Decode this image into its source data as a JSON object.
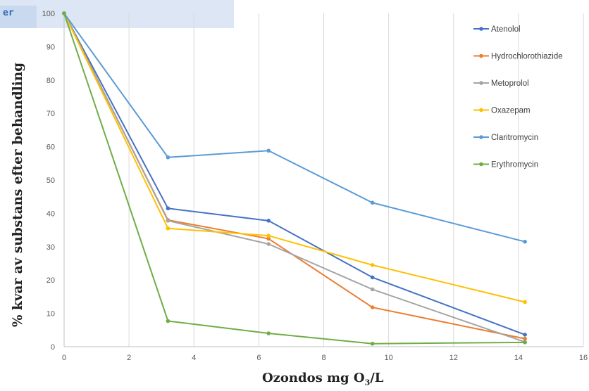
{
  "header_fragment": "er",
  "chart_data": {
    "type": "line",
    "xlabel_main": "Ozondos mg O",
    "xlabel_sub": "3",
    "xlabel_end": "/L",
    "ylabel": "% kvar av substans efter behandling",
    "xlim": [
      0,
      16
    ],
    "ylim": [
      0,
      100
    ],
    "xticks": [
      "0",
      "2",
      "4",
      "6",
      "8",
      "10",
      "12",
      "14",
      "16"
    ],
    "yticks": [
      "0",
      "10",
      "20",
      "30",
      "40",
      "50",
      "60",
      "70",
      "80",
      "90",
      "100"
    ],
    "grid": "vertical",
    "legend_position": "right",
    "x": [
      0,
      3.2,
      6.3,
      9.5,
      14.2
    ],
    "series": [
      {
        "name": "Atenolol",
        "color": "#4472c4",
        "values": [
          100,
          41.5,
          37.8,
          20.8,
          3.6
        ]
      },
      {
        "name": "Hydrochlorothiazide",
        "color": "#ed7d31",
        "values": [
          100,
          38.0,
          32.4,
          11.8,
          2.4
        ]
      },
      {
        "name": "Metoprolol",
        "color": "#a5a5a5",
        "values": [
          100,
          37.8,
          30.8,
          17.2,
          1.4
        ]
      },
      {
        "name": "Oxazepam",
        "color": "#ffc000",
        "values": [
          100,
          35.5,
          33.3,
          24.5,
          13.4
        ]
      },
      {
        "name": "Claritromycin",
        "color": "#5b9bd5",
        "values": [
          100,
          56.8,
          58.8,
          43.2,
          31.5
        ]
      },
      {
        "name": "Erythromycin",
        "color": "#70ad47",
        "values": [
          100,
          7.7,
          4.0,
          0.9,
          1.3
        ]
      }
    ]
  }
}
